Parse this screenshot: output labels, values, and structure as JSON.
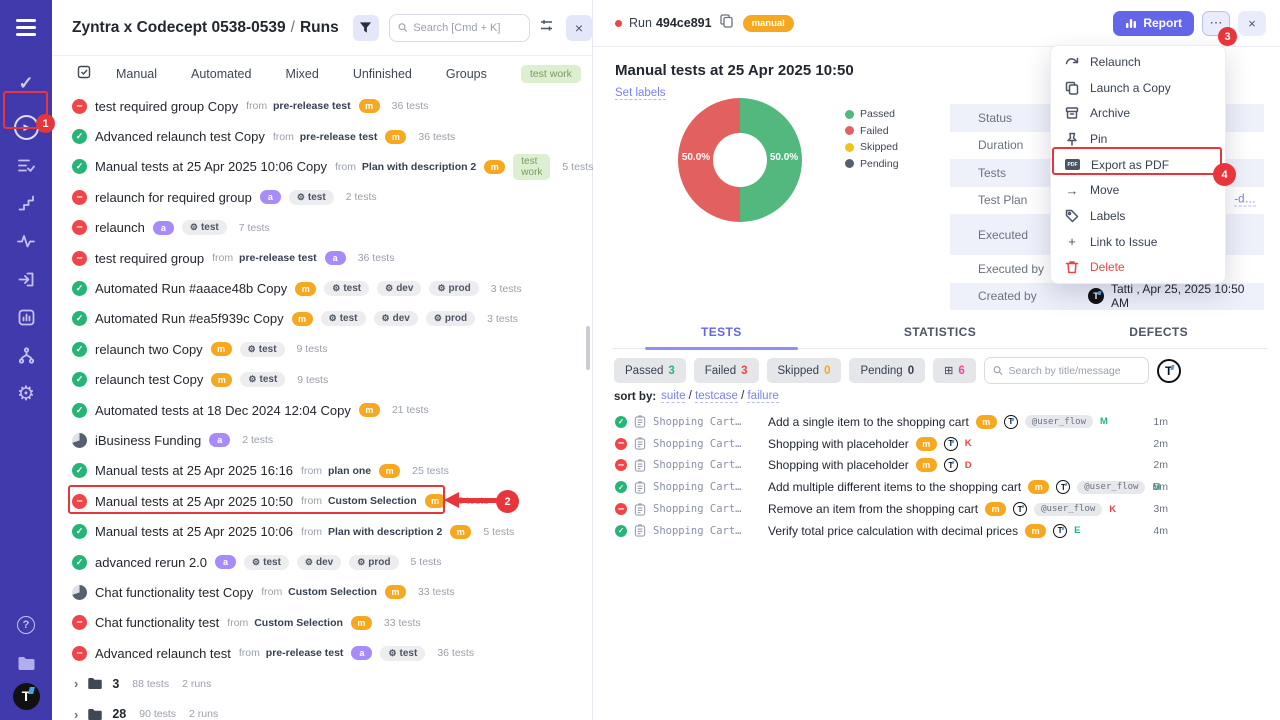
{
  "annotations": {
    "step1": "1",
    "step2": "2",
    "step3": "3",
    "step4": "4"
  },
  "sidebar": {
    "avatar_letter": "T"
  },
  "left_panel": {
    "title": "Zyntra x Codecept 0538-0539",
    "separator": "/",
    "section": "Runs",
    "search_placeholder": "Search [Cmd + K]",
    "tabs": [
      "Manual",
      "Automated",
      "Mixed",
      "Unfinished",
      "Groups"
    ],
    "tag_chip": "test work",
    "from_label": "from",
    "runs": [
      {
        "status": "failed",
        "title": "test required group Copy",
        "from": "pre-release test",
        "badge": "m",
        "envs": [],
        "tag": "",
        "tests": "36 tests"
      },
      {
        "status": "passed",
        "title": "Advanced relaunch test Copy",
        "from": "pre-release test",
        "badge": "m",
        "envs": [],
        "tag": "",
        "tests": "36 tests"
      },
      {
        "status": "passed",
        "title": "Manual tests at 25 Apr 2025 10:06 Copy",
        "from": "Plan with description 2",
        "badge": "m",
        "envs": [],
        "tag": "test work",
        "tests": "5 tests"
      },
      {
        "status": "failed",
        "title": "relaunch for required group",
        "from": "",
        "badge": "a",
        "envs": [
          "test"
        ],
        "tag": "",
        "tests": "2 tests"
      },
      {
        "status": "failed",
        "title": "relaunch",
        "from": "",
        "badge": "a",
        "envs": [
          "test"
        ],
        "tag": "",
        "tests": "7 tests"
      },
      {
        "status": "failed",
        "title": "test required group",
        "from": "pre-release test",
        "badge": "a",
        "envs": [],
        "tag": "",
        "tests": "36 tests"
      },
      {
        "status": "passed",
        "title": "Automated Run #aaace48b Copy",
        "from": "",
        "badge": "m",
        "envs": [
          "test",
          "dev",
          "prod"
        ],
        "tag": "",
        "tests": "3 tests"
      },
      {
        "status": "passed",
        "title": "Automated Run #ea5f939c Copy",
        "from": "",
        "badge": "m",
        "envs": [
          "test",
          "dev",
          "prod"
        ],
        "tag": "",
        "tests": "3 tests"
      },
      {
        "status": "passed",
        "title": "relaunch two Copy",
        "from": "",
        "badge": "m",
        "envs": [
          "test"
        ],
        "tag": "",
        "tests": "9 tests"
      },
      {
        "status": "passed",
        "title": "relaunch test Copy",
        "from": "",
        "badge": "m",
        "envs": [
          "test"
        ],
        "tag": "",
        "tests": "9 tests"
      },
      {
        "status": "passed",
        "title": "Automated tests at 18 Dec 2024 12:04 Copy",
        "from": "",
        "badge": "m",
        "envs": [],
        "tag": "",
        "tests": "21 tests"
      },
      {
        "status": "progress",
        "title": "iBusiness Funding",
        "from": "",
        "badge": "a",
        "envs": [],
        "tag": "",
        "tests": "2 tests"
      },
      {
        "status": "passed",
        "title": "Manual tests at 25 Apr 2025 16:16",
        "from": "plan one",
        "badge": "m",
        "envs": [],
        "tag": "",
        "tests": "25 tests"
      },
      {
        "status": "failed",
        "title": "Manual tests at 25 Apr 2025 10:50",
        "from": "Custom Selection",
        "badge": "m",
        "envs": [],
        "tag": "",
        "tests": "6 tests",
        "highlighted": true
      },
      {
        "status": "passed",
        "title": "Manual tests at 25 Apr 2025 10:06",
        "from": "Plan with description 2",
        "badge": "m",
        "envs": [],
        "tag": "",
        "tests": "5 tests"
      },
      {
        "status": "passed",
        "title": "advanced rerun 2.0",
        "from": "",
        "badge": "a",
        "envs": [
          "test",
          "dev",
          "prod"
        ],
        "tag": "",
        "tests": "5 tests"
      },
      {
        "status": "progress",
        "title": "Chat functionality test Copy",
        "from": "Custom Selection",
        "badge": "m",
        "envs": [],
        "tag": "",
        "tests": "33 tests"
      },
      {
        "status": "failed",
        "title": "Chat functionality test",
        "from": "Custom Selection",
        "badge": "m",
        "envs": [],
        "tag": "",
        "tests": "33 tests"
      },
      {
        "status": "failed",
        "title": "Advanced relaunch test",
        "from": "pre-release test",
        "badge": "a",
        "envs": [
          "test"
        ],
        "tag": "",
        "tests": "36 tests"
      }
    ],
    "folders": [
      {
        "name": "3",
        "tests": "88 tests",
        "runs": "2 runs"
      },
      {
        "name": "28",
        "tests": "90 tests",
        "runs": "2 runs"
      }
    ]
  },
  "detail": {
    "run_label": "Run",
    "run_id": "494ce891",
    "run_type": "manual",
    "report_label": "Report",
    "title": "Manual tests at 25 Apr 2025 10:50",
    "set_labels": "Set labels",
    "chart_data": {
      "type": "pie",
      "title": "Run results donut",
      "labels": [
        "Passed",
        "Failed",
        "Skipped",
        "Pending"
      ],
      "values": [
        50.0,
        50.0,
        0,
        0
      ],
      "unit": "%",
      "colors": [
        "#52b87d",
        "#e2615e",
        "#f0c419",
        "#565f6e"
      ],
      "slice_labels": {
        "passed": "50.0%",
        "failed": "50.0%"
      },
      "legend_position": "right"
    },
    "info_rows": [
      {
        "label": "Status",
        "value": ""
      },
      {
        "label": "Duration",
        "value": ""
      },
      {
        "label": "Tests",
        "value": ""
      },
      {
        "label": "Test Plan",
        "value": "",
        "link": "-d…"
      },
      {
        "label": "Executed",
        "value": "",
        "tall": true
      },
      {
        "label": "Executed by",
        "value": ""
      },
      {
        "label": "Created by",
        "value": "Tatti , Apr 25, 2025 10:50 AM",
        "avatar": true
      }
    ],
    "tabs": [
      {
        "label": "TESTS",
        "active": true
      },
      {
        "label": "STATISTICS",
        "active": false
      },
      {
        "label": "DEFECTS",
        "active": false
      }
    ],
    "filters": [
      {
        "label": "Passed",
        "count": "3",
        "count_color": "#26b577"
      },
      {
        "label": "Failed",
        "count": "3",
        "count_color": "#ef4444"
      },
      {
        "label": "Skipped",
        "count": "0",
        "count_color": "#f6a821"
      },
      {
        "label": "Pending",
        "count": "0",
        "count_color": "#374151"
      },
      {
        "label": "",
        "count": "6",
        "count_color": "#ec4899",
        "icon": "comment"
      }
    ],
    "search_placeholder": "Search by title/message",
    "sort_by_label": "sort by:",
    "sort_options": [
      "suite",
      "testcase",
      "failure"
    ],
    "tests": [
      {
        "status": "passed",
        "suite": "Shopping Cart…",
        "title": "Add a single item to the shopping cart",
        "badge": "m",
        "tag": "@user_flow",
        "letter": "M",
        "letter_color": "#26b577",
        "time": "1m"
      },
      {
        "status": "failed",
        "suite": "Shopping Cart…",
        "title": "Shopping with placeholder",
        "badge": "m",
        "tag": "",
        "letter": "K",
        "letter_color": "#ef4444",
        "time": "2m"
      },
      {
        "status": "failed",
        "suite": "Shopping Cart…",
        "title": "Shopping with placeholder",
        "badge": "m",
        "tag": "",
        "letter": "D",
        "letter_color": "#ef4444",
        "time": "2m"
      },
      {
        "status": "passed",
        "suite": "Shopping Cart…",
        "title": "Add multiple different items to the shopping cart",
        "badge": "m",
        "tag": "@user_flow",
        "letter": "M",
        "letter_color": "#26b577",
        "time": "5m"
      },
      {
        "status": "failed",
        "suite": "Shopping Cart…",
        "title": "Remove an item from the shopping cart",
        "badge": "m",
        "tag": "@user_flow",
        "letter": "K",
        "letter_color": "#ef4444",
        "time": "3m"
      },
      {
        "status": "passed",
        "suite": "Shopping Cart…",
        "title": "Verify total price calculation with decimal prices",
        "badge": "m",
        "tag": "",
        "letter": "E",
        "letter_color": "#26b577",
        "time": "4m"
      }
    ]
  },
  "menu": {
    "items": [
      {
        "icon": "relaunch-icon",
        "label": "Relaunch"
      },
      {
        "icon": "copy-icon",
        "label": "Launch a Copy"
      },
      {
        "icon": "archive-icon",
        "label": "Archive"
      },
      {
        "icon": "pin-icon",
        "label": "Pin"
      },
      {
        "icon": "pdf-icon",
        "label": "Export as PDF",
        "highlighted": true
      },
      {
        "icon": "move-icon",
        "label": "Move"
      },
      {
        "icon": "labels-icon",
        "label": "Labels"
      },
      {
        "icon": "link-icon",
        "label": "Link to Issue"
      },
      {
        "icon": "delete-icon",
        "label": "Delete",
        "danger": true
      }
    ]
  }
}
